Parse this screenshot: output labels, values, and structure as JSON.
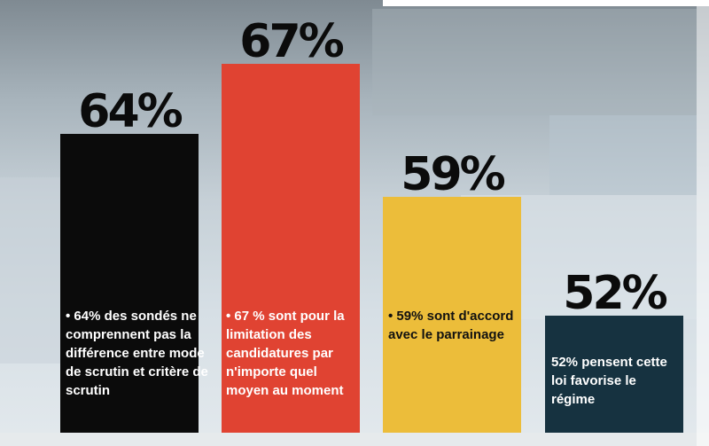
{
  "chart_data": {
    "type": "bar",
    "categories": [
      "64%",
      "67%",
      "59%",
      "52%"
    ],
    "values": [
      64,
      67,
      59,
      52
    ],
    "value_labels": [
      "64%",
      "67%",
      "59%",
      "52%"
    ],
    "descriptions": [
      "• 64% des sondés ne comprennent pas la différence entre mode de scrutin et critère de scrutin",
      "• 67 % sont pour la limitation des candidatures par n'importe quel moyen au moment",
      "• 59% sont d'accord avec le parrainage",
      "52% pensent cette loi favorise le régime"
    ],
    "colors": [
      "#0b0b0b",
      "#e04332",
      "#ecbd3a",
      "#163240"
    ],
    "title": "",
    "xlabel": "",
    "ylabel": "",
    "grid": false,
    "legend": "none"
  }
}
